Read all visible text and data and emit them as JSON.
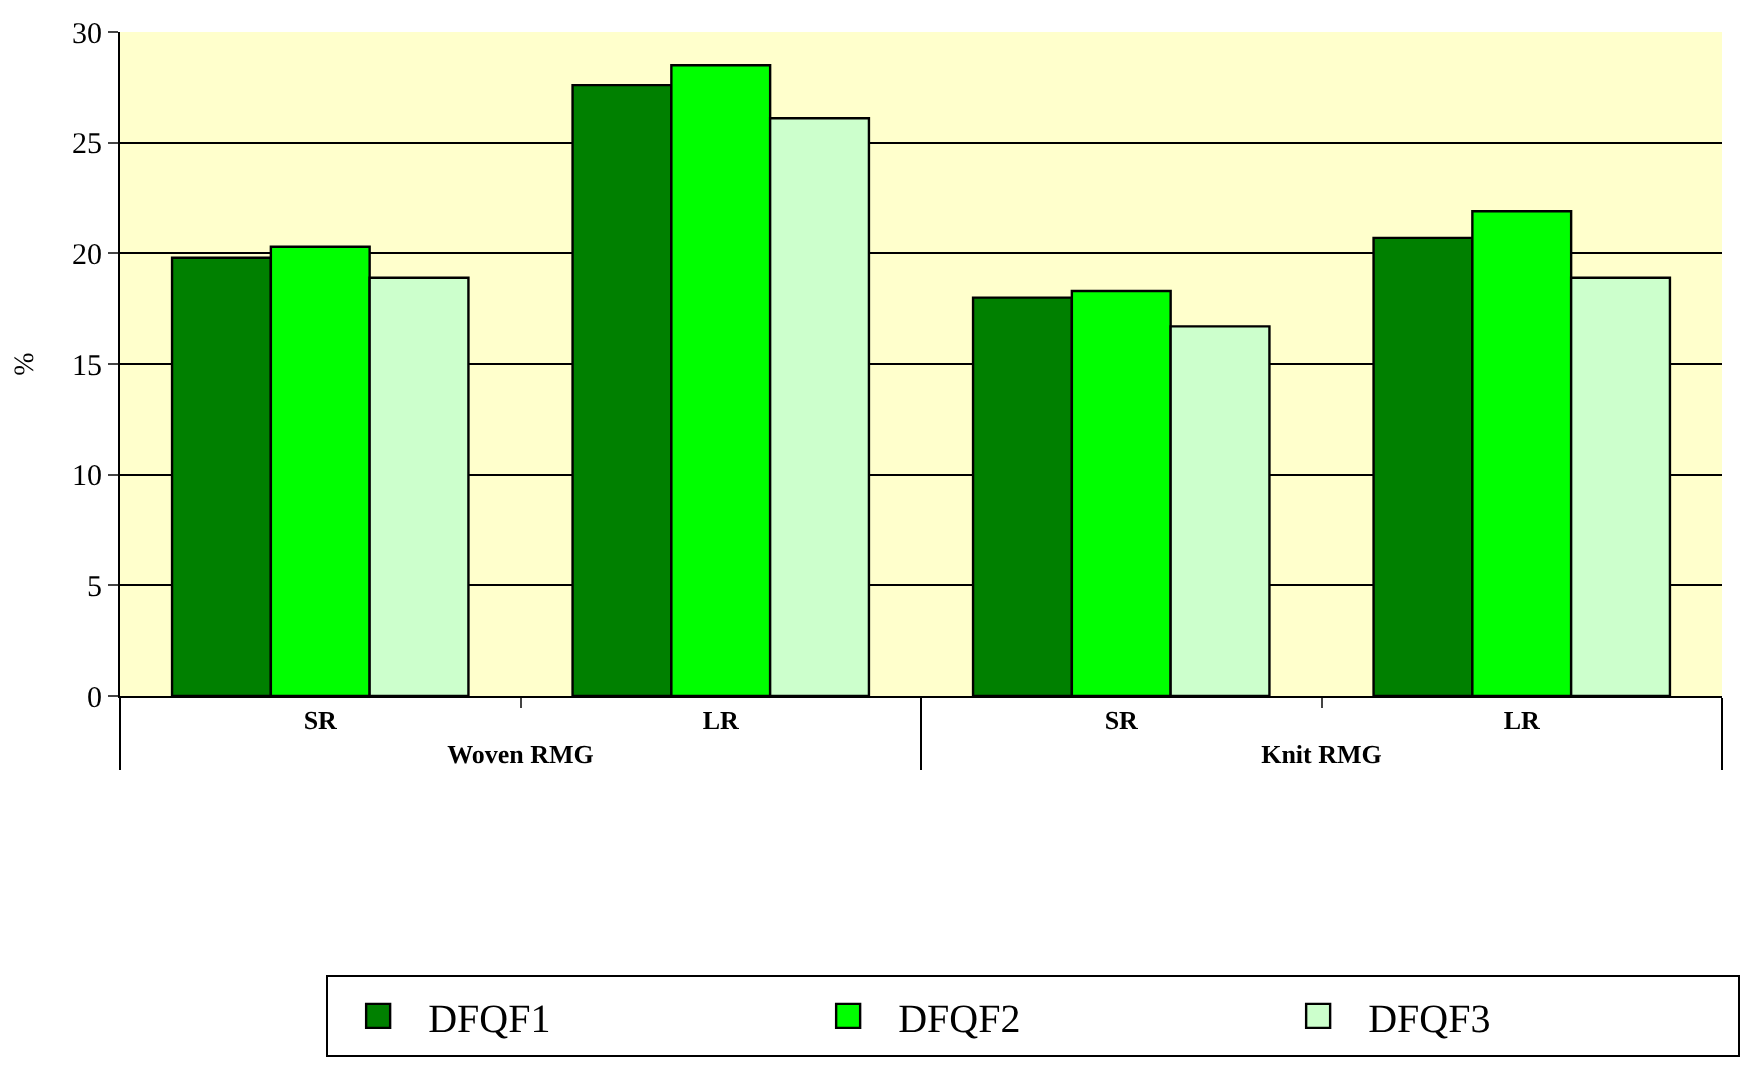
{
  "chart_data": {
    "type": "bar",
    "ylabel": "%",
    "categories": [
      "SR",
      "LR",
      "SR",
      "LR"
    ],
    "annotations": [
      "Woven RMG",
      "Knit RMG"
    ],
    "series": [
      {
        "name": "DFQF1",
        "color": "#008000",
        "values": [
          19.8,
          27.6,
          18.0,
          20.7
        ]
      },
      {
        "name": "DFQF2",
        "color": "#00ff00",
        "values": [
          20.3,
          28.5,
          18.3,
          21.9
        ]
      },
      {
        "name": "DFQF3",
        "color": "#ccffcc",
        "values": [
          18.9,
          26.1,
          16.7,
          18.9
        ]
      }
    ],
    "ylim": [
      0,
      30
    ],
    "yticks": [
      0,
      5,
      10,
      15,
      20,
      25,
      30
    ],
    "grid": "y",
    "legend": "bottom"
  }
}
